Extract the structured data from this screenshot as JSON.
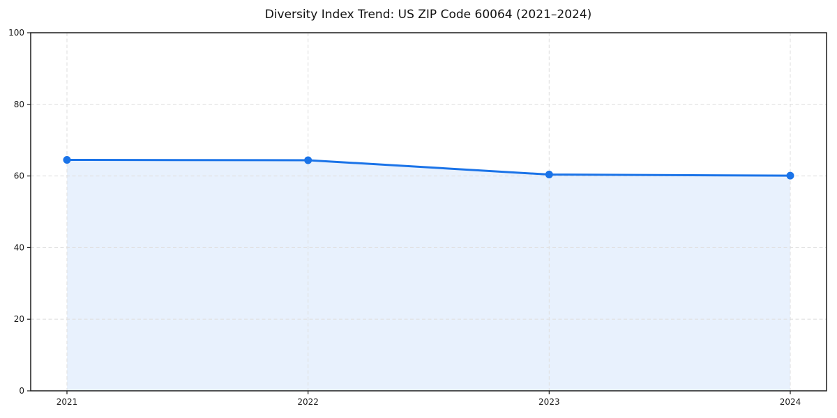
{
  "chart_data": {
    "type": "line",
    "title": "Diversity Index Trend: US ZIP Code 60064 (2021–2024)",
    "categories": [
      "2021",
      "2022",
      "2023",
      "2024"
    ],
    "values": [
      64.5,
      64.4,
      60.4,
      60.1
    ],
    "xlabel": "",
    "ylabel": "",
    "ylim": [
      0,
      100
    ],
    "yticks": [
      0,
      20,
      40,
      60,
      80,
      100
    ],
    "grid": true,
    "legend": false,
    "colors": {
      "line": "#1a73e8",
      "marker": "#1a73e8",
      "area_fill": "#e8f1fd",
      "gridline": "#e0e0e0",
      "axis_frame": "#1a1a1a",
      "tick_label": "#1a1a1a",
      "title": "#111111",
      "background": "#ffffff"
    }
  }
}
